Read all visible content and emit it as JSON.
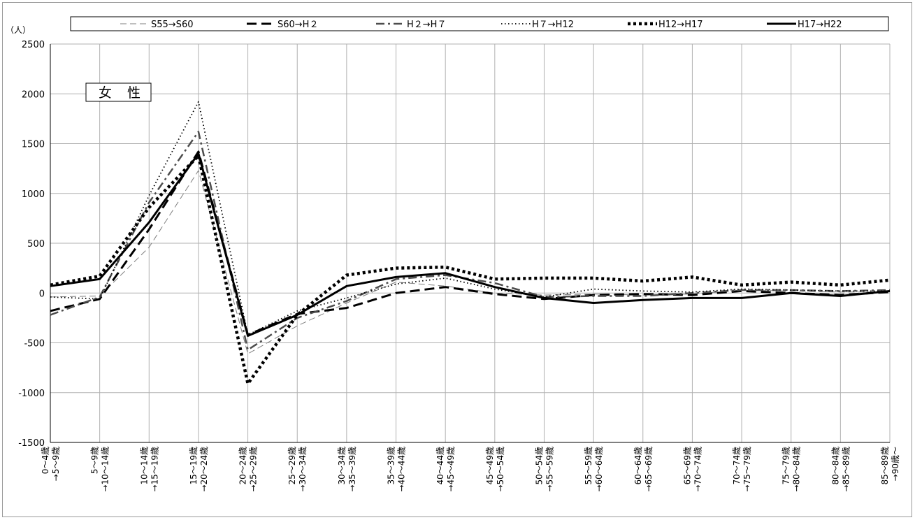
{
  "chart_data": {
    "type": "line",
    "unit_label": "（人）",
    "gender_label": "女 性",
    "ylim": [
      -1500,
      2500
    ],
    "yticks": [
      2500,
      2000,
      1500,
      1000,
      500,
      0,
      -500,
      -1000,
      -1500
    ],
    "grid": true,
    "legend_position": "top",
    "categories": [
      [
        "0～4歳",
        "→5～9歳"
      ],
      [
        "5～9歳",
        "→10～14歳"
      ],
      [
        "10～14歳",
        "→15～19歳"
      ],
      [
        "15～19歳",
        "→20～24歳"
      ],
      [
        "20～24歳",
        "→25～29歳"
      ],
      [
        "25～29歳",
        "→30～34歳"
      ],
      [
        "30～34歳",
        "→35～39歳"
      ],
      [
        "35～39歳",
        "→40～44歳"
      ],
      [
        "40～44歳",
        "→45～49歳"
      ],
      [
        "45～49歳",
        "→50～54歳"
      ],
      [
        "50～54歳",
        "→55～59歳"
      ],
      [
        "55～59歳",
        "→60～64歳"
      ],
      [
        "60～64歳",
        "→65～69歳"
      ],
      [
        "65～69歳",
        "→70～74歳"
      ],
      [
        "70～74歳",
        "→75～79歳"
      ],
      [
        "75～79歳",
        "→80～84歳"
      ],
      [
        "80～84歳",
        "→85～89歳"
      ],
      [
        "85～89歳",
        "→90歳～"
      ]
    ],
    "series": [
      {
        "name": "S55→S60",
        "style": "thin-dash",
        "color": "#7f7f7f",
        "values": [
          -40,
          -30,
          460,
          1230,
          -610,
          -330,
          -100,
          110,
          70,
          0,
          -20,
          -10,
          -20,
          -10,
          30,
          20,
          10,
          10
        ]
      },
      {
        "name": "S60→H２",
        "style": "thick-dash",
        "color": "#000000",
        "values": [
          -180,
          -60,
          640,
          1420,
          -420,
          -210,
          -150,
          0,
          60,
          -10,
          -60,
          -20,
          -10,
          -20,
          20,
          0,
          -20,
          10
        ]
      },
      {
        "name": "H２→H７",
        "style": "dash-dot",
        "color": "#4d4d4d",
        "values": [
          -220,
          -40,
          910,
          1620,
          -570,
          -250,
          -80,
          140,
          180,
          100,
          -40,
          -30,
          -30,
          0,
          30,
          30,
          20,
          30
        ]
      },
      {
        "name": "H７→H12",
        "style": "dotted",
        "color": "#000000",
        "values": [
          -40,
          -60,
          980,
          1920,
          -420,
          -180,
          -50,
          90,
          150,
          40,
          -40,
          40,
          20,
          10,
          40,
          30,
          20,
          20
        ]
      },
      {
        "name": "H12→H17",
        "style": "thick-dot",
        "color": "#000000",
        "values": [
          80,
          170,
          860,
          1380,
          -910,
          -220,
          180,
          250,
          260,
          140,
          150,
          150,
          120,
          160,
          80,
          110,
          80,
          130
        ]
      },
      {
        "name": "H17→H22",
        "style": "solid",
        "color": "#000000",
        "values": [
          70,
          140,
          710,
          1400,
          -430,
          -220,
          70,
          160,
          200,
          60,
          -50,
          -100,
          -70,
          -50,
          -50,
          0,
          -30,
          20
        ]
      }
    ]
  }
}
